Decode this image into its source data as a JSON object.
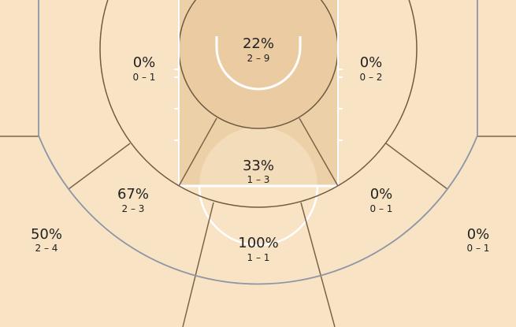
{
  "chart_data": {
    "type": "heatmap",
    "colors": {
      "floor": "#f8e3c4",
      "paint": "#ecd0a8",
      "zone_line": "#7a6448",
      "three_point_line": "#8d96a6",
      "court_line": "#ffffff"
    },
    "zones": [
      {
        "zone": "restricted-area",
        "pct": "22%",
        "made_attempts": "2 – 9",
        "made": 2,
        "attempts": 9
      },
      {
        "zone": "paint-non-ra",
        "pct": "33%",
        "made_attempts": "1 – 3",
        "made": 1,
        "attempts": 3
      },
      {
        "zone": "mid-left-baseline",
        "pct": "0%",
        "made_attempts": "0 – 1",
        "made": 0,
        "attempts": 1
      },
      {
        "zone": "mid-right-baseline",
        "pct": "0%",
        "made_attempts": "0 – 2",
        "made": 0,
        "attempts": 2
      },
      {
        "zone": "mid-left-wing",
        "pct": "67%",
        "made_attempts": "2 – 3",
        "made": 2,
        "attempts": 3
      },
      {
        "zone": "mid-right-wing",
        "pct": "0%",
        "made_attempts": "0 – 1",
        "made": 0,
        "attempts": 1
      },
      {
        "zone": "mid-top",
        "pct": "100%",
        "made_attempts": "1 – 1",
        "made": 1,
        "attempts": 1
      },
      {
        "zone": "three-left",
        "pct": "50%",
        "made_attempts": "2 – 4",
        "made": 2,
        "attempts": 4
      },
      {
        "zone": "three-right",
        "pct": "0%",
        "made_attempts": "0 – 1",
        "made": 0,
        "attempts": 1
      }
    ]
  }
}
